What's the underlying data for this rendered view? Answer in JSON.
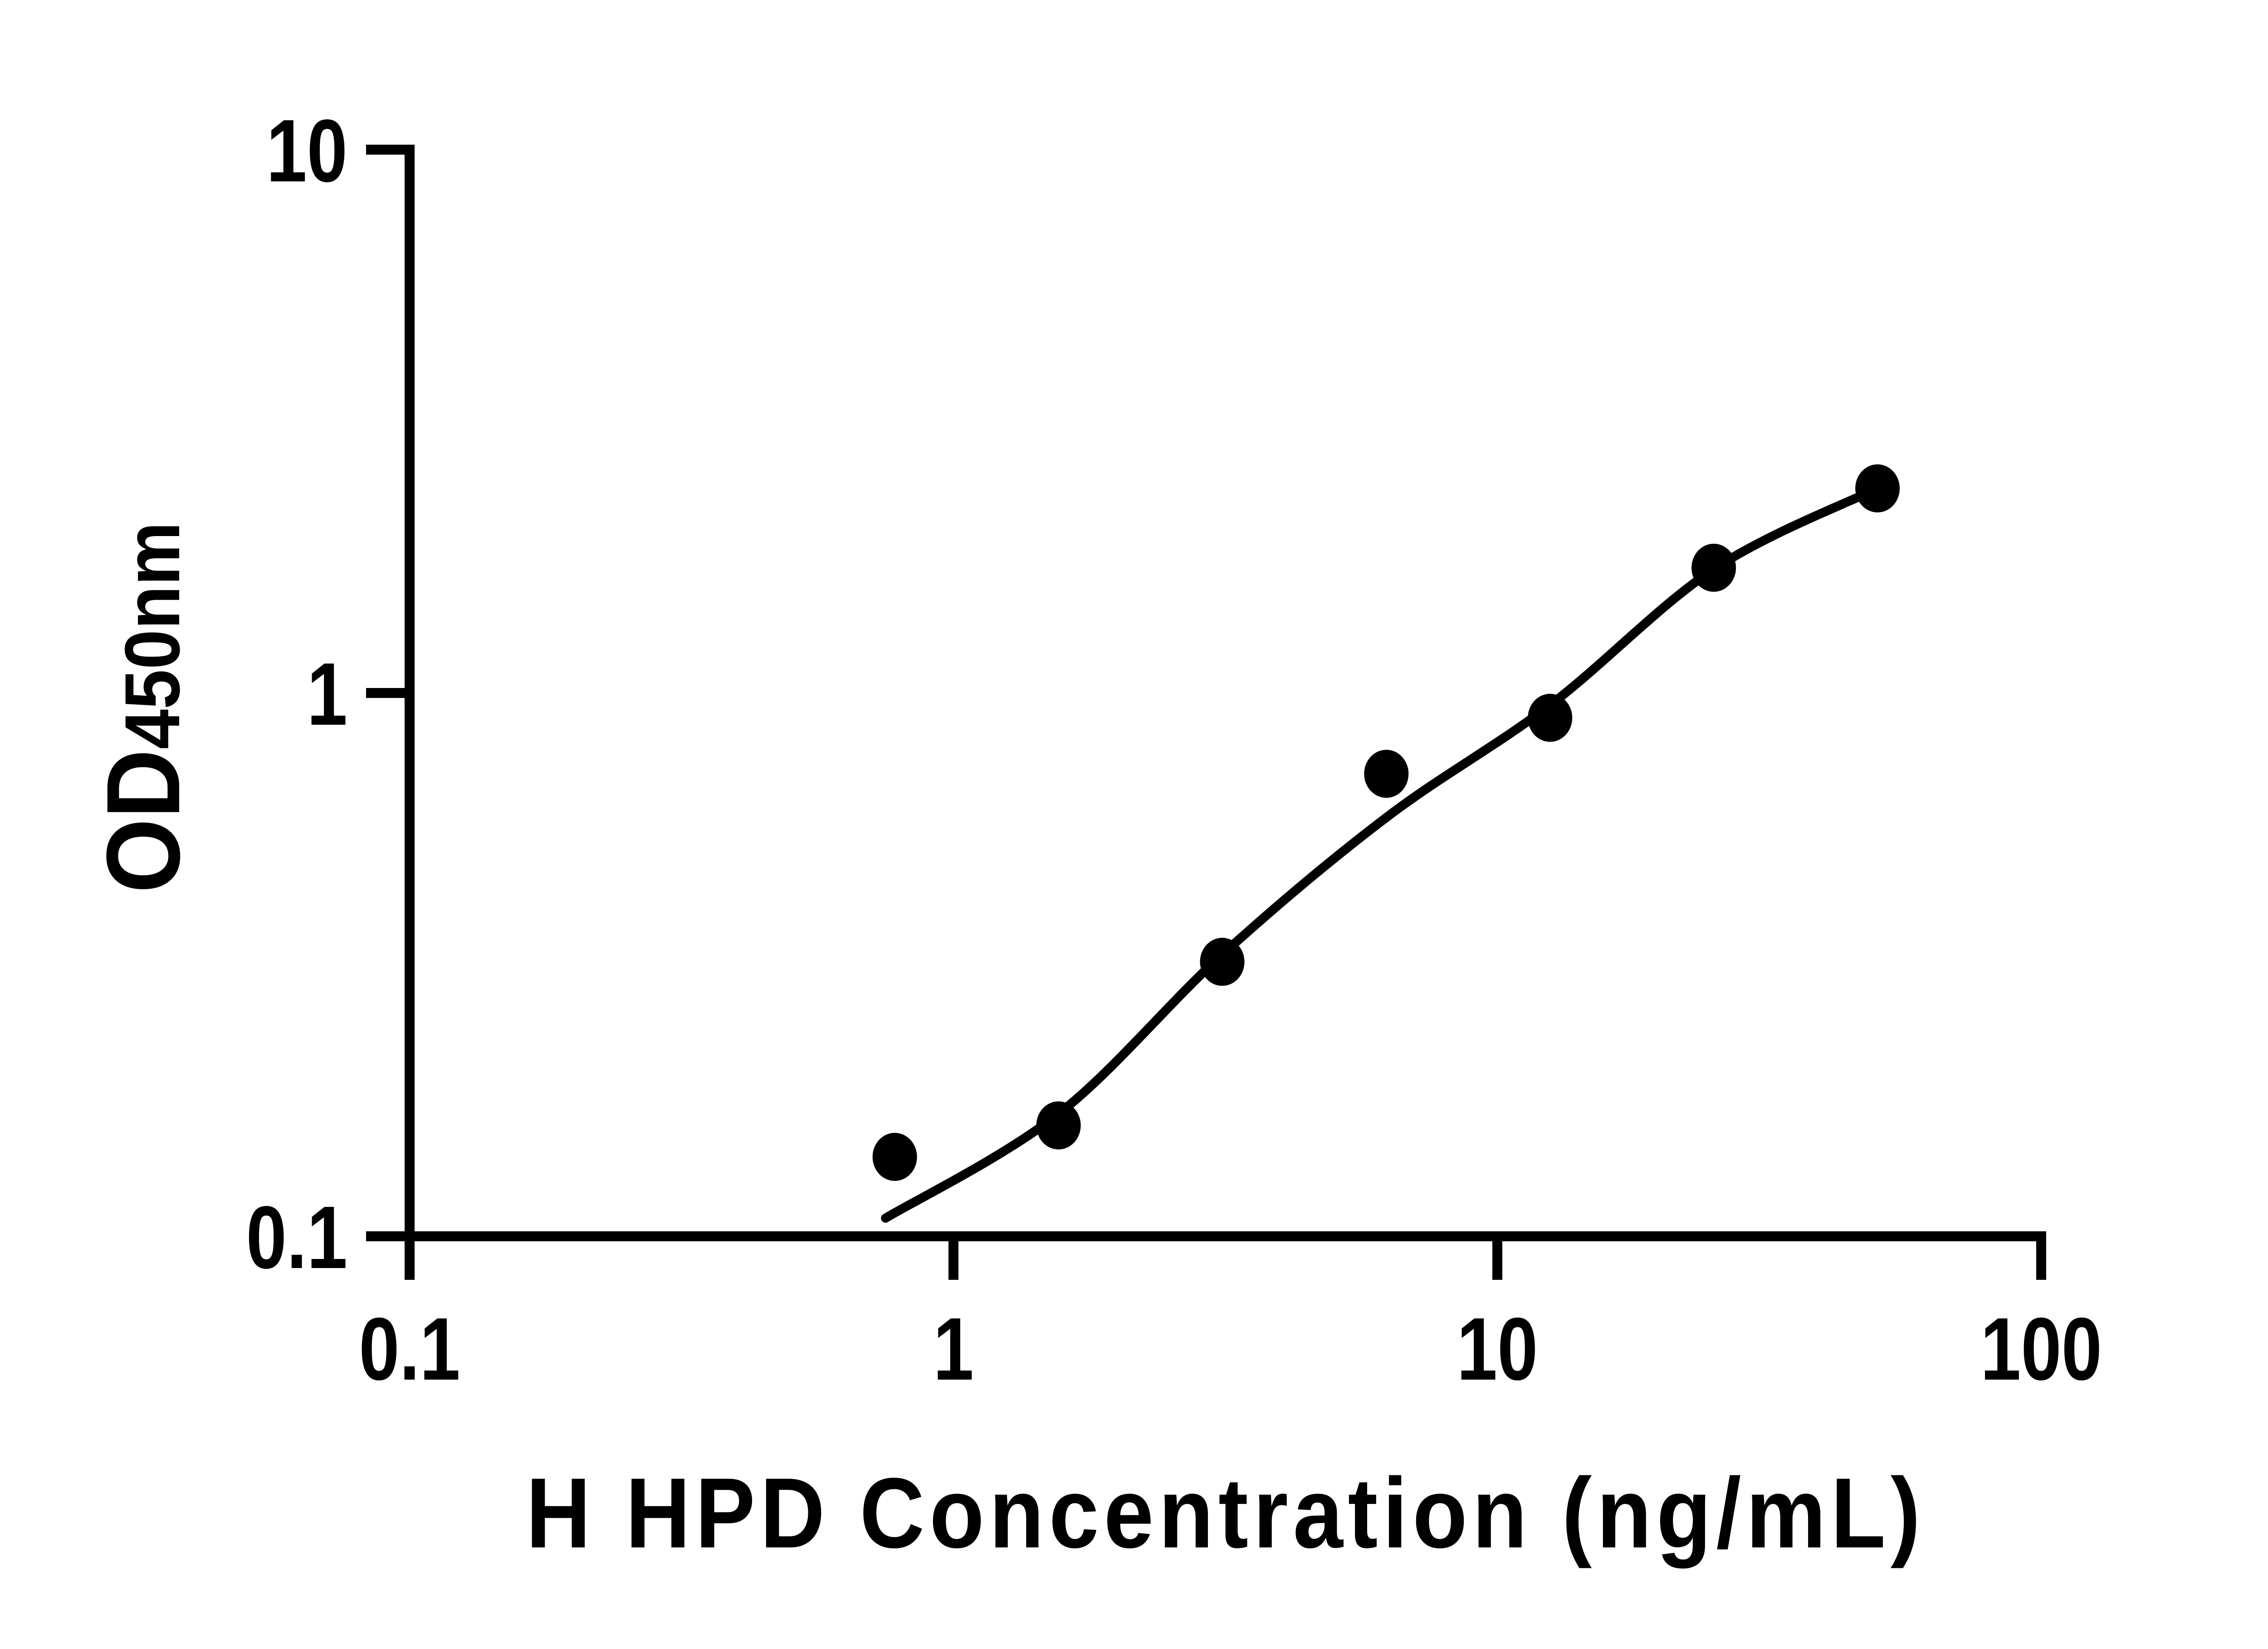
{
  "figure": {
    "background_color": "#ffffff",
    "ink_color": "#000000"
  },
  "chart_data": {
    "type": "scatter",
    "title": "",
    "xlabel": "H HPD Concentration (ng/mL)",
    "ylabel": "OD450nm",
    "ylabel_main": "OD",
    "ylabel_sub": "450nm",
    "x_scale": "log10",
    "y_scale": "log10",
    "xlim": [
      0.1,
      100
    ],
    "ylim": [
      0.1,
      10
    ],
    "grid": false,
    "legend": "none",
    "x_ticks": [
      {
        "value": 0.1,
        "label": "0.1"
      },
      {
        "value": 1,
        "label": "1"
      },
      {
        "value": 10,
        "label": "10"
      },
      {
        "value": 100,
        "label": "100"
      }
    ],
    "y_ticks": [
      {
        "value": 10,
        "label": "10"
      },
      {
        "value": 1,
        "label": "1"
      },
      {
        "value": 0.1,
        "label": "0.1"
      }
    ],
    "series": [
      {
        "name": "standard-points",
        "role": "data",
        "marker": "filled-circle",
        "color": "#000000",
        "points": [
          {
            "x": 0.78,
            "y": 0.14
          },
          {
            "x": 1.56,
            "y": 0.16
          },
          {
            "x": 3.12,
            "y": 0.32
          },
          {
            "x": 6.25,
            "y": 0.71
          },
          {
            "x": 12.5,
            "y": 0.9
          },
          {
            "x": 25,
            "y": 1.7
          },
          {
            "x": 50,
            "y": 2.38
          }
        ]
      },
      {
        "name": "fit-curve",
        "role": "fit",
        "marker": "none",
        "color": "#000000",
        "points": [
          {
            "x": 0.75,
            "y": 0.108
          },
          {
            "x": 1.56,
            "y": 0.168
          },
          {
            "x": 3.12,
            "y": 0.33
          },
          {
            "x": 6.25,
            "y": 0.59
          },
          {
            "x": 12.5,
            "y": 0.95
          },
          {
            "x": 25,
            "y": 1.69
          },
          {
            "x": 50,
            "y": 2.38
          }
        ]
      }
    ]
  }
}
